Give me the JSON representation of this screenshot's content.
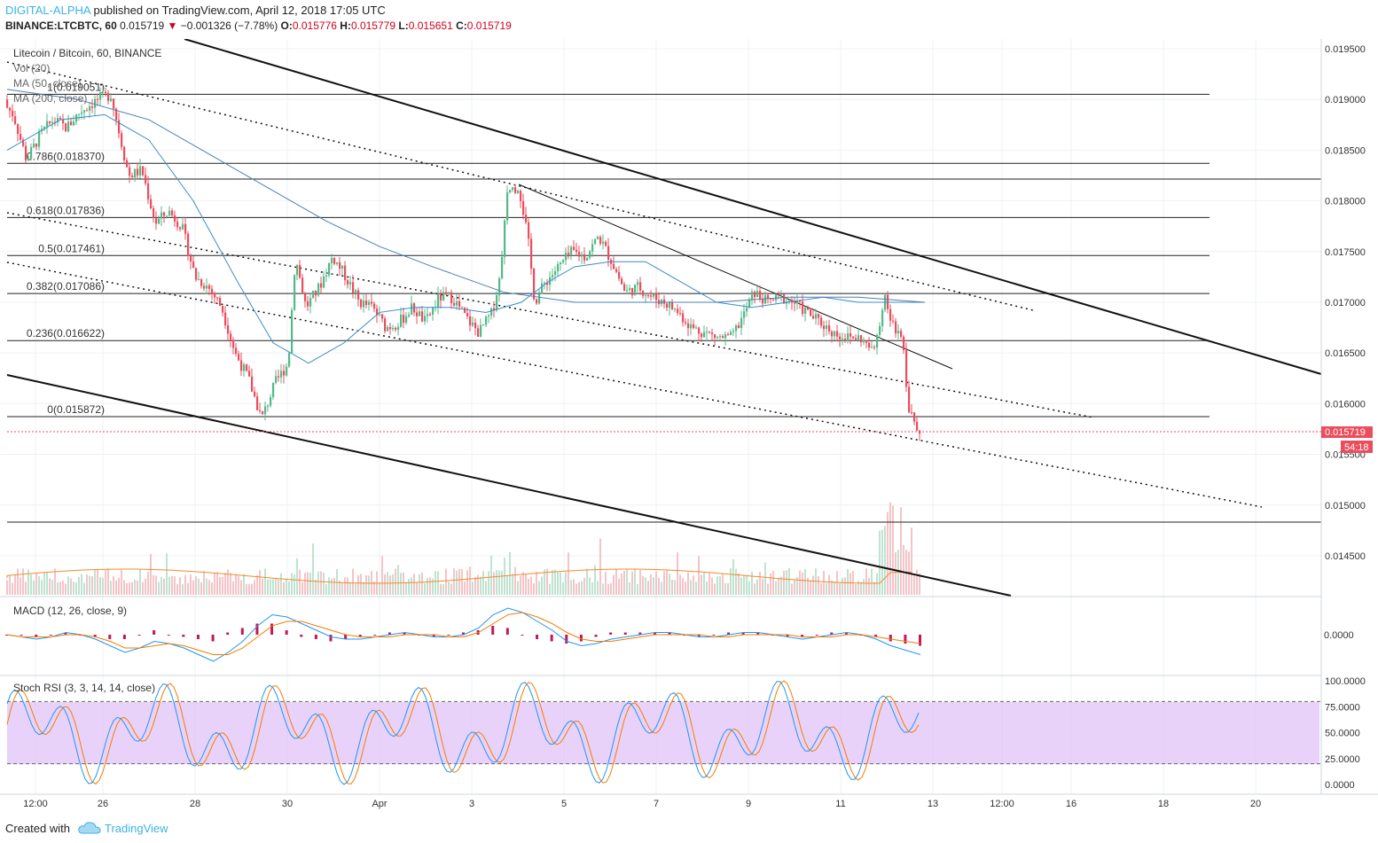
{
  "header": {
    "author": "DIGITAL-ALPHA",
    "published": "published on TradingView.com, April 12, 2018 17:05 UTC",
    "symbol_line": "BINANCE:LTCBTC, 60",
    "last": "0.015719",
    "change": "−0.001326 (−7.78%)",
    "o_label": "O:",
    "o_value": "0.015776",
    "h_label": "H:",
    "h_value": "0.015779",
    "l_label": "L:",
    "l_value": "0.015651",
    "c_label": "C:",
    "c_value": "0.015719"
  },
  "legend": {
    "title": "Litecoin / Bitcoin, 60, BINANCE",
    "vol": "Vol (20)",
    "ma50": "MA (50, close)",
    "ma200": "MA (200, close)"
  },
  "macd_label": "MACD (12, 26, close, 9)",
  "macd_axis": "0.0000",
  "stoch_label": "Stoch RSI (3, 3, 14, 14, close)",
  "footer": {
    "created": "Created with",
    "brand": "TradingView"
  },
  "colors": {
    "up": "#53b987",
    "down": "#eb4d5c",
    "ma50": "#3d8cc7",
    "ma200": "#4d7fb3",
    "vol_ma": "#f28c28",
    "macd": "#2196f3",
    "signal": "#f57c00",
    "stoch_band": "#e1c3f7"
  },
  "chart_data": {
    "type": "candlestick",
    "price_axis": {
      "ticks": [
        "0.019500",
        "0.019000",
        "0.018500",
        "0.018000",
        "0.017500",
        "0.017000",
        "0.016500",
        "0.016000",
        "0.015500",
        "0.015000",
        "0.014500"
      ],
      "last_price": "0.015719",
      "countdown": "54:18"
    },
    "time_axis": {
      "ticks": [
        "12:00",
        "26",
        "28",
        "30",
        "Apr",
        "3",
        "5",
        "7",
        "9",
        "11",
        "13",
        "12:00",
        "16",
        "18",
        "20"
      ]
    },
    "fib_levels": [
      {
        "label": "1(0.019051)",
        "price": 0.019051
      },
      {
        "label": "0.786(0.018370)",
        "price": 0.01837
      },
      {
        "label": "0.618(0.017836)",
        "price": 0.017836
      },
      {
        "label": "0.5(0.017461)",
        "price": 0.017461
      },
      {
        "label": "0.382(0.017086)",
        "price": 0.017086
      },
      {
        "label": "0.236(0.016622)",
        "price": 0.016622
      },
      {
        "label": "0(0.015872)",
        "price": 0.015872
      }
    ],
    "price_path": [
      [
        0,
        0.019
      ],
      [
        15,
        0.01885
      ],
      [
        30,
        0.0184
      ],
      [
        45,
        0.01865
      ],
      [
        60,
        0.0188
      ],
      [
        75,
        0.01872
      ],
      [
        90,
        0.01888
      ],
      [
        110,
        0.019
      ],
      [
        125,
        0.01905
      ],
      [
        135,
        0.01865
      ],
      [
        145,
        0.01825
      ],
      [
        160,
        0.0183
      ],
      [
        175,
        0.01778
      ],
      [
        190,
        0.0179
      ],
      [
        205,
        0.01775
      ],
      [
        220,
        0.01725
      ],
      [
        235,
        0.01715
      ],
      [
        250,
        0.01695
      ],
      [
        265,
        0.0165
      ],
      [
        280,
        0.01625
      ],
      [
        295,
        0.01585
      ],
      [
        310,
        0.0162
      ],
      [
        325,
        0.0164
      ],
      [
        333,
        0.01745
      ],
      [
        345,
        0.01695
      ],
      [
        360,
        0.01715
      ],
      [
        375,
        0.01745
      ],
      [
        390,
        0.01725
      ],
      [
        405,
        0.017
      ],
      [
        420,
        0.01695
      ],
      [
        435,
        0.01675
      ],
      [
        450,
        0.0168
      ],
      [
        465,
        0.01695
      ],
      [
        480,
        0.0168
      ],
      [
        495,
        0.01705
      ],
      [
        510,
        0.01705
      ],
      [
        525,
        0.01685
      ],
      [
        540,
        0.0167
      ],
      [
        555,
        0.0169
      ],
      [
        565,
        0.0173
      ],
      [
        572,
        0.0181
      ],
      [
        585,
        0.01815
      ],
      [
        595,
        0.01765
      ],
      [
        603,
        0.017
      ],
      [
        615,
        0.0172
      ],
      [
        630,
        0.01735
      ],
      [
        645,
        0.0175
      ],
      [
        660,
        0.01745
      ],
      [
        675,
        0.01765
      ],
      [
        690,
        0.0174
      ],
      [
        705,
        0.0171
      ],
      [
        720,
        0.01715
      ],
      [
        735,
        0.01705
      ],
      [
        750,
        0.017
      ],
      [
        765,
        0.0169
      ],
      [
        780,
        0.01675
      ],
      [
        795,
        0.0167
      ],
      [
        810,
        0.01665
      ],
      [
        825,
        0.01665
      ],
      [
        840,
        0.0169
      ],
      [
        850,
        0.0171
      ],
      [
        865,
        0.017
      ],
      [
        880,
        0.01705
      ],
      [
        895,
        0.017
      ],
      [
        910,
        0.0169
      ],
      [
        925,
        0.0168
      ],
      [
        940,
        0.0167
      ],
      [
        955,
        0.01665
      ],
      [
        970,
        0.01665
      ],
      [
        985,
        0.0165
      ],
      [
        997,
        0.01705
      ],
      [
        1005,
        0.0168
      ],
      [
        1015,
        0.0167
      ],
      [
        1020,
        0.0165
      ],
      [
        1023,
        0.016
      ],
      [
        1030,
        0.01585
      ],
      [
        1037,
        0.01572
      ]
    ],
    "ma50_path": [
      [
        0,
        0.0185
      ],
      [
        60,
        0.0188
      ],
      [
        110,
        0.01885
      ],
      [
        160,
        0.0186
      ],
      [
        210,
        0.018
      ],
      [
        260,
        0.0172
      ],
      [
        300,
        0.0166
      ],
      [
        340,
        0.0164
      ],
      [
        380,
        0.0166
      ],
      [
        420,
        0.0169
      ],
      [
        460,
        0.01695
      ],
      [
        500,
        0.01695
      ],
      [
        540,
        0.0169
      ],
      [
        580,
        0.017
      ],
      [
        610,
        0.0172
      ],
      [
        640,
        0.01735
      ],
      [
        680,
        0.0174
      ],
      [
        720,
        0.0174
      ],
      [
        760,
        0.0172
      ],
      [
        800,
        0.017
      ],
      [
        840,
        0.01695
      ],
      [
        880,
        0.017
      ],
      [
        920,
        0.01705
      ],
      [
        960,
        0.017
      ],
      [
        1000,
        0.017
      ],
      [
        1035,
        0.017
      ]
    ],
    "ma200_path": [
      [
        0,
        0.0191
      ],
      [
        80,
        0.019
      ],
      [
        160,
        0.0188
      ],
      [
        240,
        0.0184
      ],
      [
        300,
        0.0181
      ],
      [
        360,
        0.0178
      ],
      [
        420,
        0.01755
      ],
      [
        480,
        0.01735
      ],
      [
        560,
        0.0171
      ],
      [
        640,
        0.017
      ],
      [
        720,
        0.017
      ],
      [
        800,
        0.017
      ],
      [
        880,
        0.01705
      ],
      [
        960,
        0.01705
      ],
      [
        1035,
        0.017
      ]
    ],
    "macd_series": [
      {
        "name": "MACD",
        "values": [
          0,
          -1,
          -2,
          -1,
          1,
          0,
          -2,
          -5,
          -8,
          -6,
          -3,
          -4,
          -6,
          -9,
          -12,
          -8,
          -3,
          4,
          9,
          8,
          5,
          2,
          -1,
          -2,
          -2,
          -1,
          0,
          1,
          0,
          -1,
          -1,
          0,
          3,
          9,
          12,
          10,
          6,
          2,
          -3,
          -5,
          -4,
          -2,
          -1,
          0,
          1,
          1,
          0,
          -1,
          -1,
          0,
          1,
          1,
          0,
          -1,
          -2,
          -1,
          0,
          1,
          0,
          -2,
          -5,
          -7,
          -9
        ]
      },
      {
        "name": "Signal",
        "values": [
          0,
          -1,
          -1,
          -1,
          0,
          0,
          -1,
          -3,
          -6,
          -6,
          -5,
          -4,
          -5,
          -7,
          -9,
          -9,
          -6,
          -1,
          4,
          6,
          6,
          4,
          2,
          0,
          -1,
          -1,
          -1,
          0,
          0,
          0,
          -1,
          -1,
          1,
          5,
          9,
          10,
          8,
          5,
          1,
          -2,
          -3,
          -3,
          -2,
          -1,
          0,
          0,
          0,
          0,
          -1,
          -1,
          0,
          0,
          0,
          0,
          -1,
          -1,
          -1,
          0,
          0,
          -1,
          -2,
          -3,
          -4
        ]
      }
    ],
    "stoch_rsi": {
      "upper": 80,
      "lower": 20,
      "ticks": [
        "100.0000",
        "75.0000",
        "50.0000",
        "25.0000",
        "0.0000"
      ]
    }
  }
}
